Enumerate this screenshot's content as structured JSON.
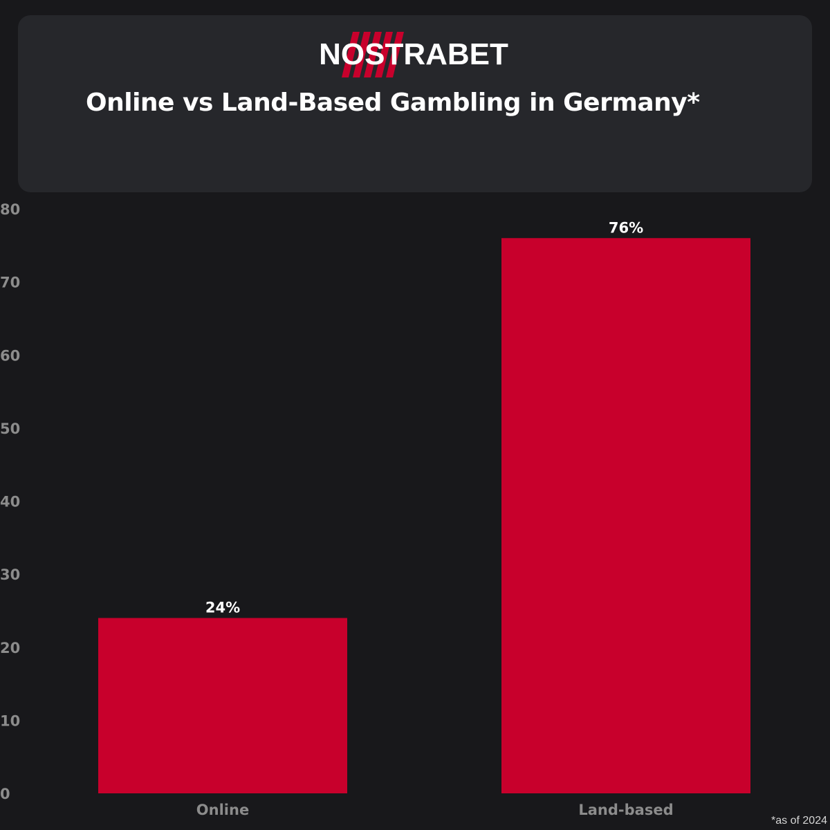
{
  "brand": {
    "logo_text": "NOSTRABET",
    "colors": {
      "accent": "#c8002c",
      "background": "#18181b",
      "card": "#26272b"
    }
  },
  "chart_data": {
    "type": "bar",
    "title": "Online vs Land-Based Gambling in Germany*",
    "categories": [
      "Online",
      "Land-based"
    ],
    "values": [
      24,
      76
    ],
    "value_labels": [
      "24%",
      "76%"
    ],
    "yticks": [
      "0",
      "10",
      "20",
      "30",
      "40",
      "50",
      "60",
      "70",
      "80"
    ],
    "ylim": [
      0,
      80
    ],
    "xlabel": "",
    "ylabel": "",
    "grid": false,
    "bar_color": "#c8002c"
  },
  "footnote": "*as of 2024"
}
